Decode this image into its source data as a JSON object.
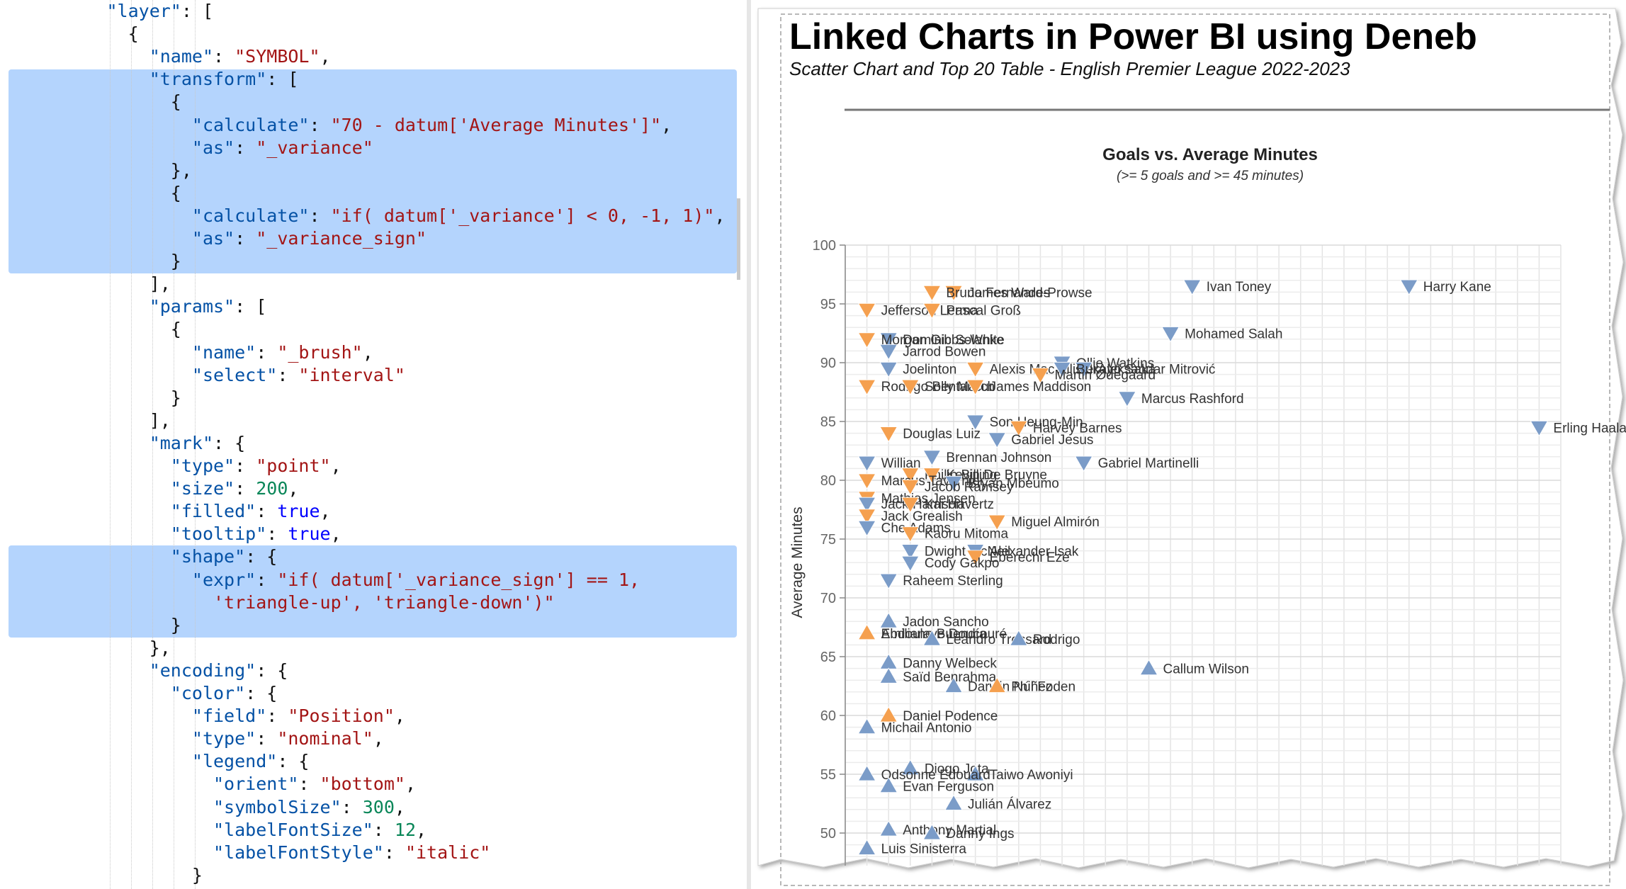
{
  "editor": {
    "lines": [
      [
        [
          "k",
          "\"layer\""
        ],
        [
          "p",
          ": ["
        ]
      ],
      [
        [
          "p",
          "{"
        ]
      ],
      [
        [
          "k",
          "\"name\""
        ],
        [
          "p",
          ": "
        ],
        [
          "s",
          "\"SYMBOL\""
        ],
        [
          "p",
          ","
        ]
      ],
      [
        [
          "k",
          "\"transform\""
        ],
        [
          "p",
          ": ["
        ]
      ],
      [
        [
          "p",
          "{"
        ]
      ],
      [
        [
          "k",
          "\"calculate\""
        ],
        [
          "p",
          ": "
        ],
        [
          "s",
          "\"70 - datum['Average Minutes']\""
        ],
        [
          "p",
          ","
        ]
      ],
      [
        [
          "k",
          "\"as\""
        ],
        [
          "p",
          ": "
        ],
        [
          "s",
          "\"_variance\""
        ]
      ],
      [
        [
          "p",
          "},"
        ]
      ],
      [
        [
          "p",
          "{"
        ]
      ],
      [
        [
          "k",
          "\"calculate\""
        ],
        [
          "p",
          ": "
        ],
        [
          "s",
          "\"if( datum['_variance'] < 0, -1, 1)\""
        ],
        [
          "p",
          ","
        ]
      ],
      [
        [
          "k",
          "\"as\""
        ],
        [
          "p",
          ": "
        ],
        [
          "s",
          "\"_variance_sign\""
        ]
      ],
      [
        [
          "p",
          "}"
        ]
      ],
      [
        [
          "p",
          "],"
        ]
      ],
      [
        [
          "k",
          "\"params\""
        ],
        [
          "p",
          ": ["
        ]
      ],
      [
        [
          "p",
          "{"
        ]
      ],
      [
        [
          "k",
          "\"name\""
        ],
        [
          "p",
          ": "
        ],
        [
          "s",
          "\"_brush\""
        ],
        [
          "p",
          ","
        ]
      ],
      [
        [
          "k",
          "\"select\""
        ],
        [
          "p",
          ": "
        ],
        [
          "s",
          "\"interval\""
        ]
      ],
      [
        [
          "p",
          "}"
        ]
      ],
      [
        [
          "p",
          "],"
        ]
      ],
      [
        [
          "k",
          "\"mark\""
        ],
        [
          "p",
          ": {"
        ]
      ],
      [
        [
          "k",
          "\"type\""
        ],
        [
          "p",
          ": "
        ],
        [
          "s",
          "\"point\""
        ],
        [
          "p",
          ","
        ]
      ],
      [
        [
          "k",
          "\"size\""
        ],
        [
          "p",
          ": "
        ],
        [
          "n",
          "200"
        ],
        [
          "p",
          ","
        ]
      ],
      [
        [
          "k",
          "\"filled\""
        ],
        [
          "p",
          ": "
        ],
        [
          "b",
          "true"
        ],
        [
          "p",
          ","
        ]
      ],
      [
        [
          "k",
          "\"tooltip\""
        ],
        [
          "p",
          ": "
        ],
        [
          "b",
          "true"
        ],
        [
          "p",
          ","
        ]
      ],
      [
        [
          "k",
          "\"shape\""
        ],
        [
          "p",
          ": {"
        ]
      ],
      [
        [
          "k",
          "\"expr\""
        ],
        [
          "p",
          ": "
        ],
        [
          "s",
          "\"if( datum['_variance_sign'] == 1,"
        ]
      ],
      [
        [
          "s",
          "'triangle-up', 'triangle-down')\""
        ]
      ],
      [
        [
          "p",
          "}"
        ]
      ],
      [
        [
          "p",
          "},"
        ]
      ],
      [
        [
          "k",
          "\"encoding\""
        ],
        [
          "p",
          ": {"
        ]
      ],
      [
        [
          "k",
          "\"color\""
        ],
        [
          "p",
          ": {"
        ]
      ],
      [
        [
          "k",
          "\"field\""
        ],
        [
          "p",
          ": "
        ],
        [
          "s",
          "\"Position\""
        ],
        [
          "p",
          ","
        ]
      ],
      [
        [
          "k",
          "\"type\""
        ],
        [
          "p",
          ": "
        ],
        [
          "s",
          "\"nominal\""
        ],
        [
          "p",
          ","
        ]
      ],
      [
        [
          "k",
          "\"legend\""
        ],
        [
          "p",
          ": {"
        ]
      ],
      [
        [
          "k",
          "\"orient\""
        ],
        [
          "p",
          ": "
        ],
        [
          "s",
          "\"bottom\""
        ],
        [
          "p",
          ","
        ]
      ],
      [
        [
          "k",
          "\"symbolSize\""
        ],
        [
          "p",
          ": "
        ],
        [
          "n",
          "300"
        ],
        [
          "p",
          ","
        ]
      ],
      [
        [
          "k",
          "\"labelFontSize\""
        ],
        [
          "p",
          ": "
        ],
        [
          "n",
          "12"
        ],
        [
          "p",
          ","
        ]
      ],
      [
        [
          "k",
          "\"labelFontStyle\""
        ],
        [
          "p",
          ": "
        ],
        [
          "s",
          "\"italic\""
        ]
      ],
      [
        [
          "p",
          "}"
        ]
      ]
    ]
  },
  "visual": {
    "title": "Linked Charts in Power BI using Deneb",
    "subtitle": "Scatter Chart and Top 20 Table - English Premier League 2022-2023"
  },
  "chart_data": {
    "type": "scatter",
    "title": "Goals vs. Average Minutes",
    "subtitle": "(>= 5 goals and >= 45 minutes)",
    "ylabel": "Average Minutes",
    "xlabel": "",
    "ylim": [
      48,
      100
    ],
    "xlim": [
      4,
      37
    ],
    "yticks": [
      100,
      95,
      90,
      85,
      80,
      75,
      70,
      65,
      60,
      55,
      50
    ],
    "grid": true,
    "colors": {
      "blue": "#7b9cc8",
      "orange": "#f5a04f"
    },
    "points": [
      {
        "name": "Harry Kane",
        "x": 30,
        "y": 96.5,
        "shape": "down",
        "color": "blue"
      },
      {
        "name": "Ivan Toney",
        "x": 20,
        "y": 96.5,
        "shape": "down",
        "color": "blue"
      },
      {
        "name": "James Ward-Prowse",
        "x": 9,
        "y": 96,
        "shape": "down",
        "color": "orange"
      },
      {
        "name": "Bruno Fernandes",
        "x": 8,
        "y": 96,
        "shape": "down",
        "color": "orange"
      },
      {
        "name": "Jefferson Lerma",
        "x": 5,
        "y": 94.5,
        "shape": "down",
        "color": "orange"
      },
      {
        "name": "Pascal Groß",
        "x": 8,
        "y": 94.5,
        "shape": "down",
        "color": "orange"
      },
      {
        "name": "Mohamed Salah",
        "x": 19,
        "y": 92.5,
        "shape": "down",
        "color": "blue"
      },
      {
        "name": "Dominic Solanke",
        "x": 6,
        "y": 92,
        "shape": "down",
        "color": "blue"
      },
      {
        "name": "Morgan Gibbs-White",
        "x": 5,
        "y": 92,
        "shape": "down",
        "color": "orange"
      },
      {
        "name": "Jarrod Bowen",
        "x": 6,
        "y": 91,
        "shape": "down",
        "color": "blue"
      },
      {
        "name": "Ollie Watkins",
        "x": 14,
        "y": 90,
        "shape": "down",
        "color": "blue"
      },
      {
        "name": "Joelinton",
        "x": 6,
        "y": 89.5,
        "shape": "down",
        "color": "blue"
      },
      {
        "name": "Alexis Mac Allister",
        "x": 10,
        "y": 89.5,
        "shape": "down",
        "color": "orange"
      },
      {
        "name": "Aleksandar Mitrović",
        "x": 15,
        "y": 89.5,
        "shape": "down",
        "color": "blue"
      },
      {
        "name": "Bukayo Saka",
        "x": 14,
        "y": 89.5,
        "shape": "down",
        "color": "blue"
      },
      {
        "name": "Martin Ødegaard",
        "x": 13,
        "y": 89,
        "shape": "down",
        "color": "orange"
      },
      {
        "name": "Rodrigo Bentancur",
        "x": 5,
        "y": 88,
        "shape": "down",
        "color": "orange"
      },
      {
        "name": "Solly March",
        "x": 7,
        "y": 88,
        "shape": "down",
        "color": "orange"
      },
      {
        "name": "James Maddison",
        "x": 10,
        "y": 88,
        "shape": "down",
        "color": "orange"
      },
      {
        "name": "Marcus Rashford",
        "x": 17,
        "y": 87,
        "shape": "down",
        "color": "blue"
      },
      {
        "name": "Son Heung-Min",
        "x": 10,
        "y": 85,
        "shape": "down",
        "color": "blue"
      },
      {
        "name": "Harvey Barnes",
        "x": 12,
        "y": 84.5,
        "shape": "down",
        "color": "orange"
      },
      {
        "name": "Erling Haaland",
        "x": 36,
        "y": 84.5,
        "shape": "down",
        "color": "blue"
      },
      {
        "name": "Douglas Luiz",
        "x": 6,
        "y": 84,
        "shape": "down",
        "color": "orange"
      },
      {
        "name": "Gabriel Jesus",
        "x": 11,
        "y": 83.5,
        "shape": "down",
        "color": "blue"
      },
      {
        "name": "Brennan Johnson",
        "x": 8,
        "y": 82,
        "shape": "down",
        "color": "blue"
      },
      {
        "name": "Gabriel Martinelli",
        "x": 15,
        "y": 81.5,
        "shape": "down",
        "color": "blue"
      },
      {
        "name": "Willian",
        "x": 5,
        "y": 81.5,
        "shape": "down",
        "color": "blue"
      },
      {
        "name": "Philip Billing",
        "x": 7,
        "y": 80.5,
        "shape": "down",
        "color": "orange"
      },
      {
        "name": "Kevin De Bruyne",
        "x": 8,
        "y": 80.5,
        "shape": "down",
        "color": "orange"
      },
      {
        "name": "Marcus Tavernier",
        "x": 5,
        "y": 80,
        "shape": "down",
        "color": "orange"
      },
      {
        "name": "Bryan Mbeumo",
        "x": 9,
        "y": 79.8,
        "shape": "down",
        "color": "blue"
      },
      {
        "name": "Jacob Ramsey",
        "x": 7,
        "y": 79.5,
        "shape": "down",
        "color": "orange"
      },
      {
        "name": "Mathias Jensen",
        "x": 5,
        "y": 78.5,
        "shape": "down",
        "color": "orange"
      },
      {
        "name": "Jack Harrison",
        "x": 5,
        "y": 78,
        "shape": "down",
        "color": "blue"
      },
      {
        "name": "Kai Havertz",
        "x": 7,
        "y": 78,
        "shape": "down",
        "color": "orange"
      },
      {
        "name": "Jack Grealish",
        "x": 5,
        "y": 77,
        "shape": "down",
        "color": "orange"
      },
      {
        "name": "Miguel Almirón",
        "x": 11,
        "y": 76.5,
        "shape": "down",
        "color": "orange"
      },
      {
        "name": "Che Adams",
        "x": 5,
        "y": 76,
        "shape": "down",
        "color": "blue"
      },
      {
        "name": "Kaoru Mitoma",
        "x": 7,
        "y": 75.5,
        "shape": "down",
        "color": "orange"
      },
      {
        "name": "Dwight McNeil",
        "x": 7,
        "y": 74,
        "shape": "down",
        "color": "blue"
      },
      {
        "name": "Alexander Isak",
        "x": 10,
        "y": 74,
        "shape": "down",
        "color": "blue"
      },
      {
        "name": "Eberechi Eze",
        "x": 10,
        "y": 73.5,
        "shape": "down",
        "color": "orange"
      },
      {
        "name": "Cody Gakpo",
        "x": 7,
        "y": 73,
        "shape": "down",
        "color": "blue"
      },
      {
        "name": "Raheem Sterling",
        "x": 6,
        "y": 71.5,
        "shape": "down",
        "color": "blue"
      },
      {
        "name": "Jadon Sancho",
        "x": 6,
        "y": 68,
        "shape": "up",
        "color": "blue"
      },
      {
        "name": "Abdoulaye Doucouré",
        "x": 5,
        "y": 67,
        "shape": "up",
        "color": "orange"
      },
      {
        "name": "Emiliano Buendía",
        "x": 5,
        "y": 67,
        "shape": "up",
        "color": "orange"
      },
      {
        "name": "Leandro Trossard",
        "x": 8,
        "y": 66.5,
        "shape": "up",
        "color": "blue"
      },
      {
        "name": "Rodrigo",
        "x": 12,
        "y": 66.5,
        "shape": "up",
        "color": "blue"
      },
      {
        "name": "Danny Welbeck",
        "x": 6,
        "y": 64.5,
        "shape": "up",
        "color": "blue"
      },
      {
        "name": "Callum Wilson",
        "x": 18,
        "y": 64,
        "shape": "up",
        "color": "blue"
      },
      {
        "name": "Saïd Benrahma",
        "x": 6,
        "y": 63.3,
        "shape": "up",
        "color": "blue"
      },
      {
        "name": "Darwin Núñez",
        "x": 9,
        "y": 62.5,
        "shape": "up",
        "color": "blue"
      },
      {
        "name": "Phil Foden",
        "x": 11,
        "y": 62.5,
        "shape": "up",
        "color": "orange"
      },
      {
        "name": "Daniel Podence",
        "x": 6,
        "y": 60,
        "shape": "up",
        "color": "orange"
      },
      {
        "name": "Michail Antonio",
        "x": 5,
        "y": 59,
        "shape": "up",
        "color": "blue"
      },
      {
        "name": "Diogo Jota",
        "x": 7,
        "y": 55.5,
        "shape": "up",
        "color": "blue"
      },
      {
        "name": "Taiwo Awoniyi",
        "x": 10,
        "y": 55,
        "shape": "up",
        "color": "blue"
      },
      {
        "name": "Odsonne Edouard",
        "x": 5,
        "y": 55,
        "shape": "up",
        "color": "blue"
      },
      {
        "name": "Evan Ferguson",
        "x": 6,
        "y": 54,
        "shape": "up",
        "color": "blue"
      },
      {
        "name": "Julián Álvarez",
        "x": 9,
        "y": 52.5,
        "shape": "up",
        "color": "blue"
      },
      {
        "name": "Anthony Martial",
        "x": 6,
        "y": 50.3,
        "shape": "up",
        "color": "blue"
      },
      {
        "name": "Danny Ings",
        "x": 8,
        "y": 50,
        "shape": "up",
        "color": "blue"
      },
      {
        "name": "Luis Sinisterra",
        "x": 5,
        "y": 48.7,
        "shape": "up",
        "color": "blue"
      }
    ]
  }
}
